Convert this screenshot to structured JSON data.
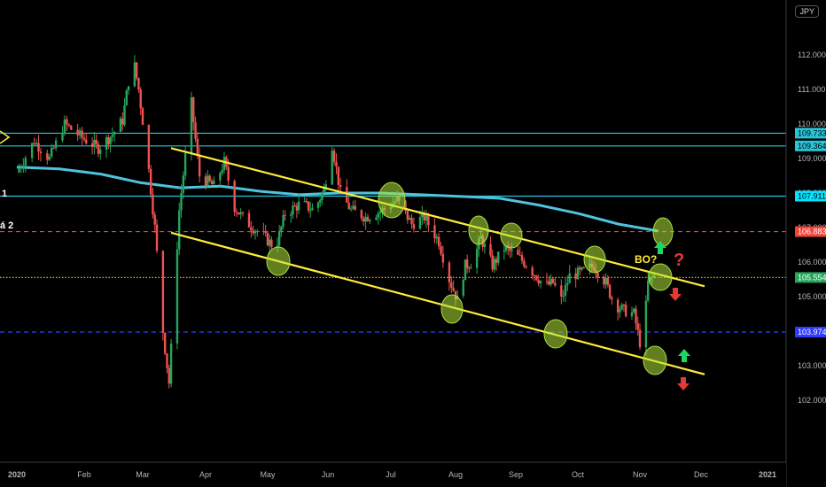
{
  "chart_data": {
    "type": "candlestick",
    "symbol": "JPY",
    "x_ticks": [
      "2020",
      "Feb",
      "Mar",
      "Apr",
      "May",
      "Jun",
      "Jul",
      "Aug",
      "Sep",
      "Oct",
      "Nov",
      "Dec",
      "2021"
    ],
    "y_ticks": [
      "102.000",
      "103.000",
      "104.000",
      "105.000",
      "106.000",
      "107.000",
      "108.000",
      "109.000",
      "110.000",
      "111.000",
      "112.000"
    ],
    "ylim": [
      100.4,
      113.4
    ],
    "moving_average": {
      "color": "#4fc3dc",
      "values": [
        108.75,
        108.7,
        108.55,
        108.3,
        108.15,
        108.2,
        108.05,
        107.95,
        108.0,
        108.0,
        107.95,
        107.9,
        107.85,
        107.65,
        107.4,
        107.1,
        106.9
      ]
    },
    "channel": {
      "color": "#ffeb3b",
      "upper": {
        "start": [
          "Mar 19",
          109.3
        ],
        "end": [
          "Dec 4",
          105.3
        ]
      },
      "lower": {
        "start": [
          "Mar 19",
          106.85
        ],
        "end": [
          "Dec 4",
          102.75
        ]
      }
    },
    "horizontal_levels": [
      {
        "value": 109.733,
        "label": "109.733",
        "style": "solid",
        "color": "#26c6da",
        "label_bg": "#26c6da"
      },
      {
        "value": 109.364,
        "label": "109.364",
        "style": "solid",
        "color": "#26c6da",
        "label_bg": "#26c6da"
      },
      {
        "value": 107.911,
        "label": "107.911",
        "style": "solid",
        "color": "#26c6da",
        "label_bg": "#00e5ff"
      },
      {
        "value": 106.883,
        "label": "106.883",
        "style": "dashed",
        "color": "#f44336",
        "label_bg": "#f44336"
      },
      {
        "value": 105.554,
        "label": "105.554",
        "style": "dotted",
        "color": "#e6b800",
        "label_bg": "#26a65b"
      },
      {
        "value": 103.974,
        "label": "103.974",
        "style": "dashed",
        "color": "#2f3bff",
        "label_bg": "#2f3bff"
      }
    ],
    "annotations": [
      {
        "text": "BO?",
        "color": "#ffeb3b"
      },
      {
        "text": "?",
        "color": "#e53935"
      }
    ],
    "left_labels": [
      "1",
      "á 2"
    ],
    "candle_colors": {
      "up": "#26a65b",
      "down": "#ef5350"
    }
  }
}
